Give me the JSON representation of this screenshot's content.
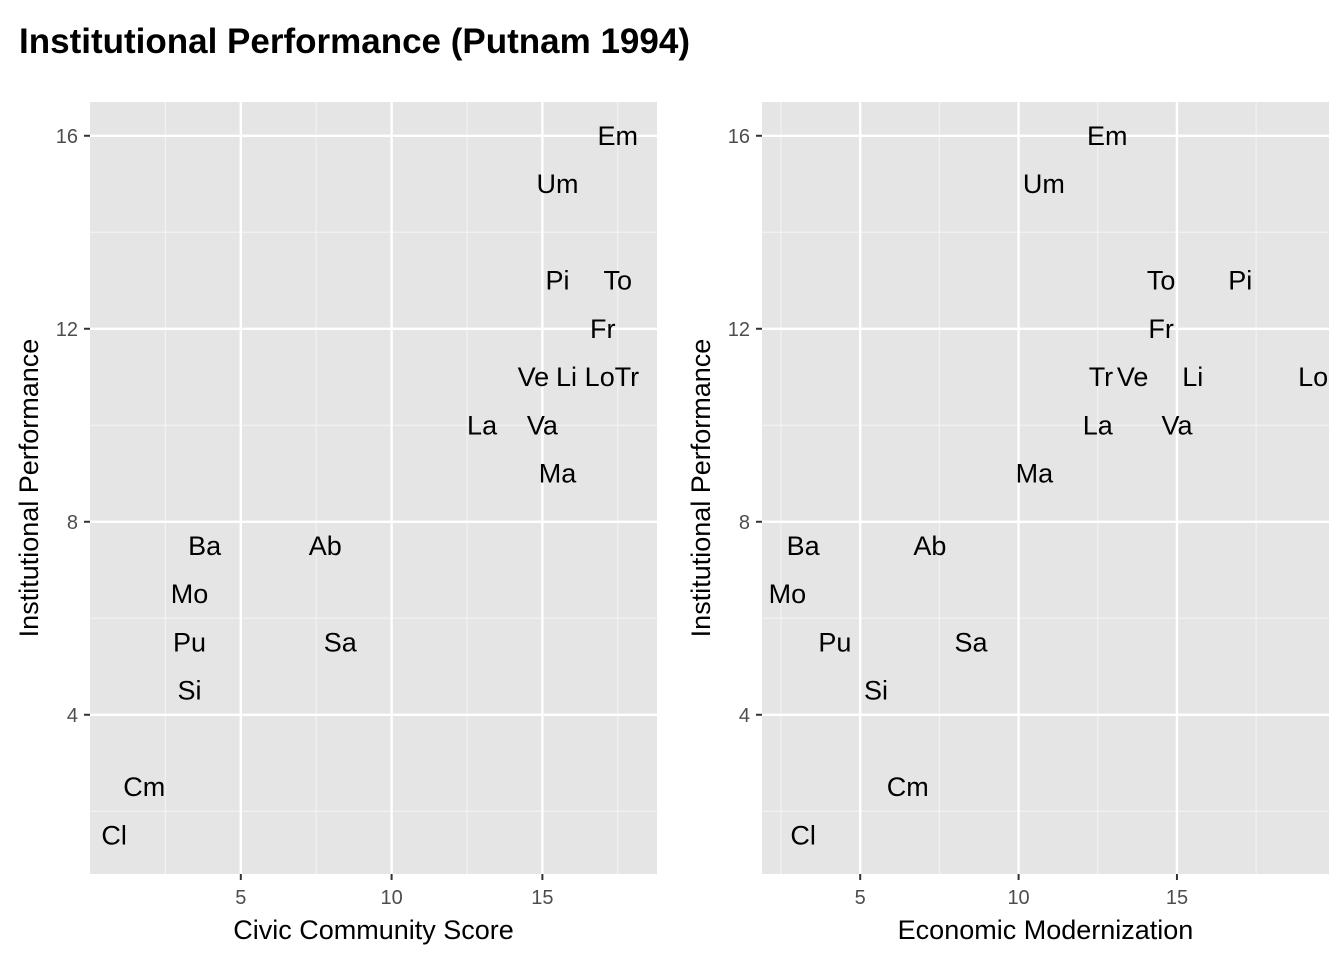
{
  "title": "Institutional Performance (Putnam 1994)",
  "colors": {
    "panel_background": "#e5e5e5",
    "major_grid": "#ffffff",
    "minor_grid": "#f2f2f2",
    "tick_text": "#4d4d4d",
    "text": "#000000"
  },
  "chart_data": [
    {
      "type": "scatter",
      "geom": "text-labels",
      "xlabel": "Civic Community Score",
      "ylabel": "Institutional Performance",
      "xlim": [
        0,
        18.8
      ],
      "ylim": [
        0.7,
        16.7
      ],
      "xticks": [
        5,
        10,
        15
      ],
      "yticks": [
        4,
        8,
        12,
        16
      ],
      "grid": true,
      "points": [
        {
          "label": "Em",
          "x": 17.5,
          "y": 16
        },
        {
          "label": "Um",
          "x": 15.5,
          "y": 15
        },
        {
          "label": "Pi",
          "x": 15.5,
          "y": 13
        },
        {
          "label": "To",
          "x": 17.5,
          "y": 13
        },
        {
          "label": "Fr",
          "x": 17,
          "y": 12
        },
        {
          "label": "Ve",
          "x": 14.7,
          "y": 11
        },
        {
          "label": "Li",
          "x": 15.8,
          "y": 11
        },
        {
          "label": "Lo",
          "x": 16.9,
          "y": 11
        },
        {
          "label": "Tr",
          "x": 17.8,
          "y": 11
        },
        {
          "label": "La",
          "x": 13,
          "y": 10
        },
        {
          "label": "Va",
          "x": 15,
          "y": 10
        },
        {
          "label": "Ma",
          "x": 15.5,
          "y": 9
        },
        {
          "label": "Ba",
          "x": 3.8,
          "y": 7.5
        },
        {
          "label": "Ab",
          "x": 7.8,
          "y": 7.5
        },
        {
          "label": "Mo",
          "x": 3.3,
          "y": 6.5
        },
        {
          "label": "Pu",
          "x": 3.3,
          "y": 5.5
        },
        {
          "label": "Sa",
          "x": 8.3,
          "y": 5.5
        },
        {
          "label": "Si",
          "x": 3.3,
          "y": 4.5
        },
        {
          "label": "Cm",
          "x": 1.8,
          "y": 2.5
        },
        {
          "label": "Cl",
          "x": 0.8,
          "y": 1.5
        }
      ]
    },
    {
      "type": "scatter",
      "geom": "text-labels",
      "xlabel": "Economic Modernization",
      "ylabel": "Institutional Performance",
      "xlim": [
        1.9,
        19.8
      ],
      "ylim": [
        0.7,
        16.7
      ],
      "xticks": [
        5,
        10,
        15
      ],
      "yticks": [
        4,
        8,
        12,
        16
      ],
      "grid": true,
      "points": [
        {
          "label": "Em",
          "x": 12.8,
          "y": 16
        },
        {
          "label": "Um",
          "x": 10.8,
          "y": 15
        },
        {
          "label": "To",
          "x": 14.5,
          "y": 13
        },
        {
          "label": "Pi",
          "x": 17,
          "y": 13
        },
        {
          "label": "Fr",
          "x": 14.5,
          "y": 12
        },
        {
          "label": "Tr",
          "x": 12.6,
          "y": 11
        },
        {
          "label": "Ve",
          "x": 13.6,
          "y": 11
        },
        {
          "label": "Li",
          "x": 15.5,
          "y": 11
        },
        {
          "label": "Lo",
          "x": 19.3,
          "y": 11
        },
        {
          "label": "La",
          "x": 12.5,
          "y": 10
        },
        {
          "label": "Va",
          "x": 15,
          "y": 10
        },
        {
          "label": "Ma",
          "x": 10.5,
          "y": 9
        },
        {
          "label": "Ba",
          "x": 3.2,
          "y": 7.5
        },
        {
          "label": "Ab",
          "x": 7.2,
          "y": 7.5
        },
        {
          "label": "Mo",
          "x": 2.7,
          "y": 6.5
        },
        {
          "label": "Pu",
          "x": 4.2,
          "y": 5.5
        },
        {
          "label": "Sa",
          "x": 8.5,
          "y": 5.5
        },
        {
          "label": "Si",
          "x": 5.5,
          "y": 4.5
        },
        {
          "label": "Cm",
          "x": 6.5,
          "y": 2.5
        },
        {
          "label": "Cl",
          "x": 3.2,
          "y": 1.5
        }
      ]
    }
  ]
}
